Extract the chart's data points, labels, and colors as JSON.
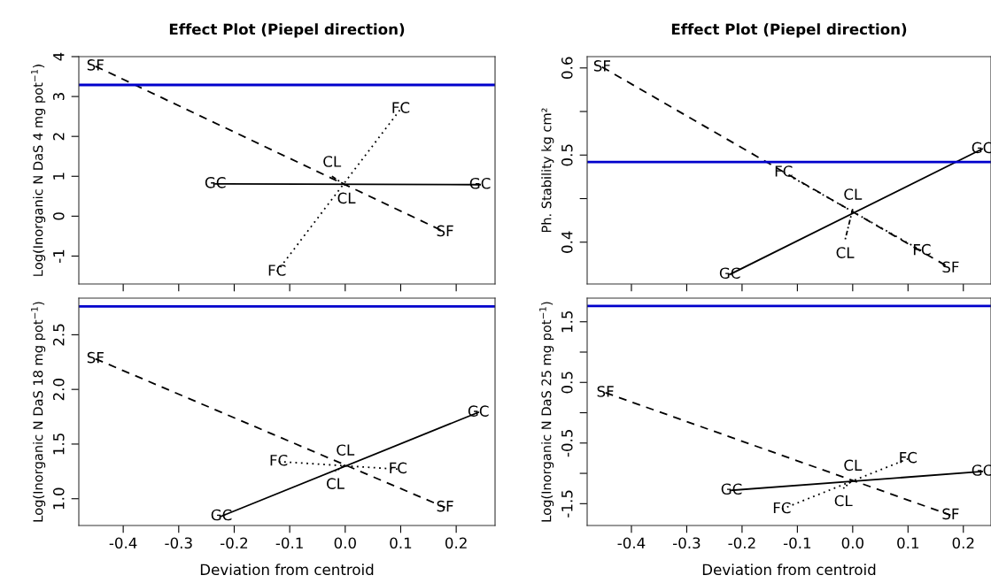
{
  "chart_data": [
    {
      "type": "line",
      "title": "Effect Plot (Piepel direction)",
      "ylabel": "Log(Inorganic N DaS 4 mg pot$^{−1}$)",
      "xlim": [
        -0.48,
        0.27
      ],
      "ylim": [
        -1.7,
        4.0
      ],
      "xticks": [
        -0.4,
        -0.3,
        -0.2,
        -0.1,
        0.0,
        0.1,
        0.2
      ],
      "yticks": [
        -1,
        0,
        1,
        2,
        3,
        4
      ],
      "tick_labels": "y",
      "marker": "none",
      "grid": false,
      "legend": false,
      "ref_lines": [
        {
          "axis": "y",
          "value": 3.29,
          "color": "#0000cc",
          "line_style": "solid"
        }
      ],
      "series": [
        {
          "name": "SF",
          "color": "#000000",
          "line_style": "dashed",
          "x": [
            -0.45,
            0.18
          ],
          "values": [
            3.76,
            -0.4
          ]
        },
        {
          "name": "FC",
          "color": "#000000",
          "line_style": "dotted",
          "x": [
            -0.123,
            0.1
          ],
          "values": [
            -1.39,
            2.69
          ]
        },
        {
          "name": "GC",
          "color": "#000000",
          "line_style": "solid",
          "x": [
            -0.234,
            0.243
          ],
          "values": [
            0.81,
            0.79
          ]
        },
        {
          "name": "CL",
          "color": "#000000",
          "line_style": "dashdot",
          "x": [
            -0.024,
            0.002
          ],
          "values": [
            1.0,
            0.76
          ]
        }
      ]
    },
    {
      "type": "line",
      "title": "Effect Plot (Piepel direction)",
      "ylabel": "Ph. Stability kg cm²",
      "xlim": [
        -0.48,
        0.25
      ],
      "ylim": [
        0.352,
        0.613
      ],
      "xticks": [
        -0.4,
        -0.3,
        -0.2,
        -0.1,
        0.0,
        0.1,
        0.2
      ],
      "yticks": [
        0.4,
        {
          "value": 0.45,
          "label": null
        },
        0.5,
        {
          "value": 0.55,
          "label": null
        },
        0.6
      ],
      "tick_labels": "y",
      "marker": "none",
      "grid": false,
      "legend": false,
      "ref_lines": [
        {
          "axis": "y",
          "value": 0.492,
          "color": "#0000cc",
          "line_style": "solid"
        }
      ],
      "series": [
        {
          "name": "SF",
          "color": "#000000",
          "line_style": "dashed",
          "x": [
            -0.453,
            0.177
          ],
          "values": [
            0.601,
            0.37
          ]
        },
        {
          "name": "FC",
          "color": "#000000",
          "line_style": "dotted",
          "x": [
            -0.125,
            0.125
          ],
          "values": [
            0.48,
            0.39
          ]
        },
        {
          "name": "GC",
          "color": "#000000",
          "line_style": "solid",
          "x": [
            -0.222,
            0.234
          ],
          "values": [
            0.363,
            0.507
          ]
        },
        {
          "name": "CL",
          "color": "#000000",
          "line_style": "dashdot",
          "x": [
            0.0,
            -0.014
          ],
          "values": [
            0.438,
            0.402
          ]
        }
      ]
    },
    {
      "type": "line",
      "xlabel": "Deviation from centroid",
      "ylabel": "Log(Inorganic N DaS 18 mg pot$^{−1}$)",
      "xlim": [
        -0.48,
        0.27
      ],
      "ylim": [
        0.755,
        2.835
      ],
      "xticks": [
        -0.4,
        -0.3,
        -0.2,
        -0.1,
        {
          "value": 0,
          "label": "0.0"
        },
        0.1,
        0.2
      ],
      "yticks": [
        {
          "value": 1,
          "label": "1.0"
        },
        1.5,
        {
          "value": 2,
          "label": "2.0"
        },
        2.5
      ],
      "marker": "none",
      "grid": false,
      "legend": false,
      "ref_lines": [
        {
          "axis": "y",
          "value": 2.76,
          "color": "#0000cc",
          "line_style": "solid"
        }
      ],
      "series": [
        {
          "name": "SF",
          "color": "#000000",
          "line_style": "dashed",
          "x": [
            -0.45,
            0.18
          ],
          "values": [
            2.28,
            0.92
          ]
        },
        {
          "name": "FC",
          "color": "#000000",
          "line_style": "dotted",
          "x": [
            -0.12,
            0.095
          ],
          "values": [
            1.34,
            1.27
          ]
        },
        {
          "name": "GC",
          "color": "#000000",
          "line_style": "solid",
          "x": [
            -0.223,
            0.24
          ],
          "values": [
            0.84,
            1.79
          ]
        },
        {
          "name": "CL",
          "color": "#000000",
          "line_style": "dashdot",
          "x": [
            0.0,
            -0.018
          ],
          "values": [
            1.31,
            1.25
          ]
        }
      ]
    },
    {
      "type": "line",
      "xlabel": "Deviation from centroid",
      "ylabel": "Log(Inorganic N DaS 25 mg pot$^{−1}$)",
      "xlim": [
        -0.48,
        0.25
      ],
      "ylim": [
        -1.86,
        1.89
      ],
      "xticks": [
        -0.4,
        -0.3,
        -0.2,
        -0.1,
        {
          "value": 0,
          "label": "0.0"
        },
        0.1,
        0.2
      ],
      "yticks": [
        -1.5,
        {
          "value": -1.0,
          "label": null
        },
        -0.5,
        {
          "value": 0.0,
          "label": null
        },
        0.5,
        {
          "value": 1.0,
          "label": null
        },
        1.5
      ],
      "marker": "none",
      "grid": false,
      "legend": false,
      "ref_lines": [
        {
          "axis": "y",
          "value": 1.76,
          "color": "#0000cc",
          "line_style": "solid"
        }
      ],
      "series": [
        {
          "name": "SF",
          "color": "#000000",
          "line_style": "dashed",
          "x": [
            -0.447,
            0.177
          ],
          "values": [
            0.33,
            -1.69
          ]
        },
        {
          "name": "FC",
          "color": "#000000",
          "line_style": "dotted",
          "x": [
            -0.128,
            0.1
          ],
          "values": [
            -1.59,
            -0.76
          ]
        },
        {
          "name": "GC",
          "color": "#000000",
          "line_style": "solid",
          "x": [
            -0.219,
            0.234
          ],
          "values": [
            -1.28,
            -0.97
          ]
        },
        {
          "name": "CL",
          "color": "#000000",
          "line_style": "dashdot",
          "x": [
            0.0,
            -0.017
          ],
          "values": [
            -1.11,
            -1.25
          ]
        }
      ]
    }
  ]
}
